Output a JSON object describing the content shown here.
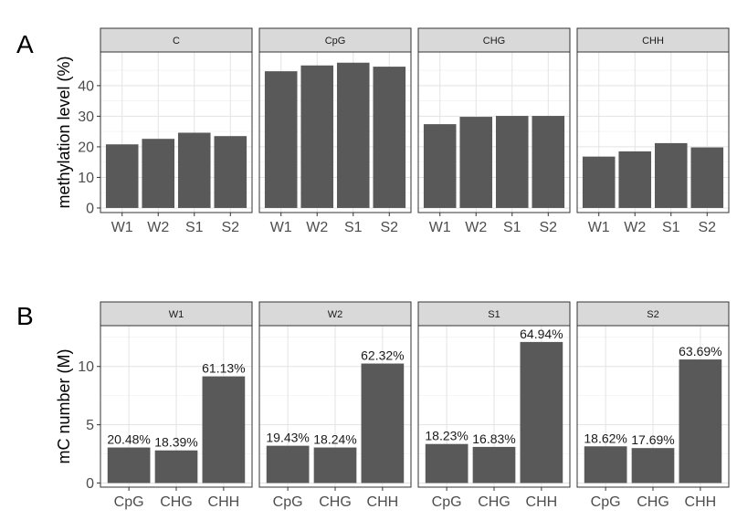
{
  "chart_data": [
    {
      "id": "A",
      "panel_letter": "A",
      "type": "bar",
      "ylabel": "methylation level (%)",
      "ylim": [
        -1.5,
        51
      ],
      "yticks": [
        0,
        10,
        20,
        30,
        40
      ],
      "grid": true,
      "bar_color": "#595959",
      "facets": [
        {
          "name": "C",
          "categories": [
            "W1",
            "W2",
            "S1",
            "S2"
          ],
          "values": [
            20.8,
            22.6,
            24.6,
            23.5
          ]
        },
        {
          "name": "CpG",
          "categories": [
            "W1",
            "W2",
            "S1",
            "S2"
          ],
          "values": [
            44.7,
            46.6,
            47.5,
            46.2
          ]
        },
        {
          "name": "CHG",
          "categories": [
            "W1",
            "W2",
            "S1",
            "S2"
          ],
          "values": [
            27.4,
            29.8,
            30.1,
            30.1
          ]
        },
        {
          "name": "CHH",
          "categories": [
            "W1",
            "W2",
            "S1",
            "S2"
          ],
          "values": [
            16.8,
            18.5,
            21.2,
            19.8
          ]
        }
      ]
    },
    {
      "id": "B",
      "panel_letter": "B",
      "type": "bar",
      "ylabel": "mC number (M)",
      "ylim": [
        -0.35,
        13.5
      ],
      "yticks": [
        0,
        5,
        10
      ],
      "grid": true,
      "bar_color": "#595959",
      "facets": [
        {
          "name": "W1",
          "categories": [
            "CpG",
            "CHG",
            "CHH"
          ],
          "values": [
            3.05,
            2.8,
            9.15
          ],
          "labels": [
            "20.48%",
            "18.39%",
            "61.13%"
          ]
        },
        {
          "name": "W2",
          "categories": [
            "CpG",
            "CHG",
            "CHH"
          ],
          "values": [
            3.2,
            3.05,
            10.25
          ],
          "labels": [
            "19.43%",
            "18.24%",
            "62.32%"
          ]
        },
        {
          "name": "S1",
          "categories": [
            "CpG",
            "CHG",
            "CHH"
          ],
          "values": [
            3.35,
            3.1,
            12.1
          ],
          "labels": [
            "18.23%",
            "16.83%",
            "64.94%"
          ]
        },
        {
          "name": "S2",
          "categories": [
            "CpG",
            "CHG",
            "CHH"
          ],
          "values": [
            3.15,
            3.0,
            10.6
          ],
          "labels": [
            "18.62%",
            "17.69%",
            "63.69%"
          ]
        }
      ]
    }
  ]
}
